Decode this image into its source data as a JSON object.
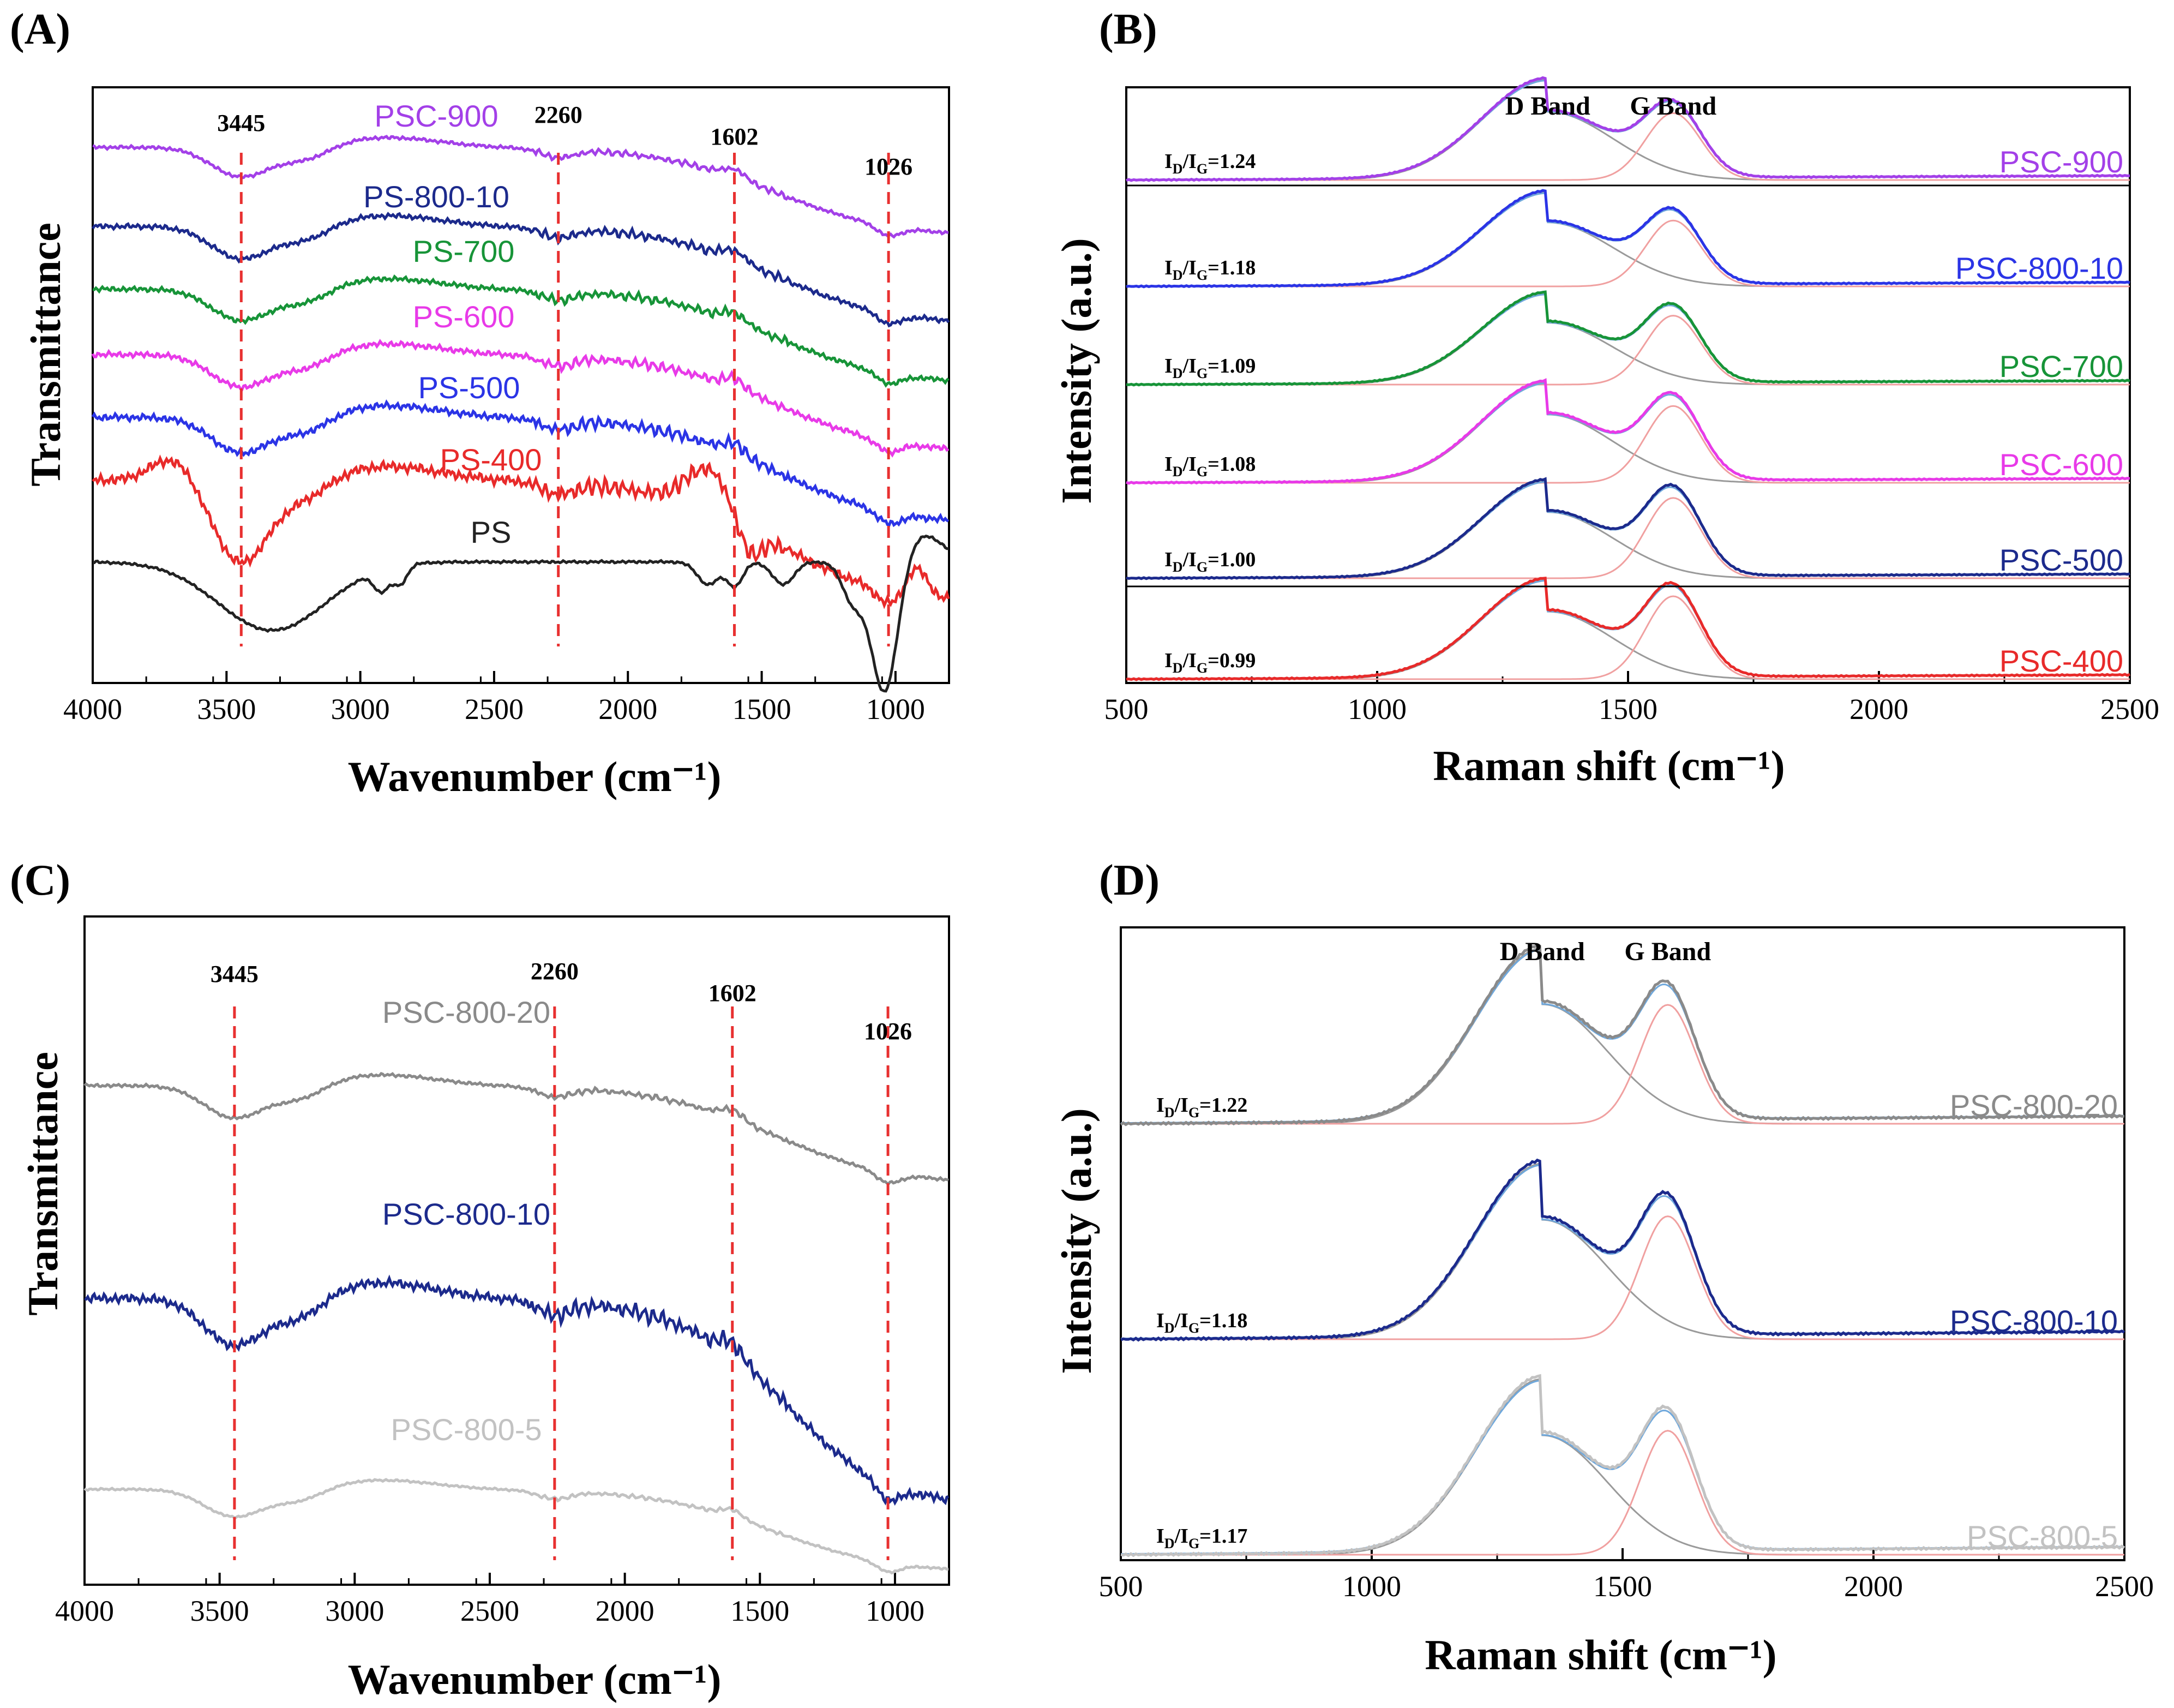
{
  "chart_data": [
    {
      "panel": "(A)",
      "type": "line",
      "xlabel": "Wavenumber (cm⁻¹)",
      "ylabel": "Transmittance",
      "xlim": [
        4000,
        800
      ],
      "xticks": [
        "4000",
        "3500",
        "3000",
        "2500",
        "2000",
        "1500",
        "1000"
      ],
      "peak_lines": [
        {
          "position": 3445,
          "label": "3445"
        },
        {
          "position": 2260,
          "label": "2260"
        },
        {
          "position": 1602,
          "label": "1602"
        },
        {
          "position": 1026,
          "label": "1026"
        }
      ],
      "series": [
        {
          "name": "PSC-900",
          "color": "#a340e8",
          "offset": 6
        },
        {
          "name": "PS-800-10",
          "color": "#1c2a8c",
          "offset": 5
        },
        {
          "name": "PS-700",
          "color": "#179438",
          "offset": 4
        },
        {
          "name": "PS-600",
          "color": "#e83ae8",
          "offset": 3
        },
        {
          "name": "PS-500",
          "color": "#2b34e6",
          "offset": 2
        },
        {
          "name": "PS-400",
          "color": "#e82a2a",
          "offset": 1
        },
        {
          "name": "PS",
          "color": "#222222",
          "offset": 0
        }
      ]
    },
    {
      "panel": "(B)",
      "type": "line",
      "xlabel": "Raman shift (cm⁻¹)",
      "ylabel": "Intensity (a.u.)",
      "xlim": [
        500,
        2500
      ],
      "xticks": [
        "500",
        "1000",
        "1500",
        "2000",
        "2500"
      ],
      "band_labels": [
        "D Band",
        "G Band"
      ],
      "series": [
        {
          "name": "PSC-900",
          "color": "#a340e8",
          "ratio_label": "=1.24",
          "ratio": 1.24
        },
        {
          "name": "PSC-800-10",
          "color": "#2b34e6",
          "ratio_label": "=1.18",
          "ratio": 1.18
        },
        {
          "name": "PSC-700",
          "color": "#179438",
          "ratio_label": "=1.09",
          "ratio": 1.09
        },
        {
          "name": "PSC-600",
          "color": "#e83ae8",
          "ratio_label": "=1.08",
          "ratio": 1.08
        },
        {
          "name": "PSC-500",
          "color": "#1c2a8c",
          "ratio_label": "=1.00",
          "ratio": 1.0
        },
        {
          "name": "PSC-400",
          "color": "#e82a2a",
          "ratio_label": "=0.99",
          "ratio": 0.99
        }
      ]
    },
    {
      "panel": "(C)",
      "type": "line",
      "xlabel": "Wavenumber (cm⁻¹)",
      "ylabel": "Transmittance",
      "xlim": [
        4000,
        800
      ],
      "xticks": [
        "4000",
        "3500",
        "3000",
        "2500",
        "2000",
        "1500",
        "1000"
      ],
      "peak_lines": [
        {
          "position": 3445,
          "label": "3445"
        },
        {
          "position": 2260,
          "label": "2260"
        },
        {
          "position": 1602,
          "label": "1602"
        },
        {
          "position": 1026,
          "label": "1026"
        }
      ],
      "series": [
        {
          "name": "PSC-800-20",
          "color": "#8a8a8a"
        },
        {
          "name": "PSC-800-10",
          "color": "#1c2a8c"
        },
        {
          "name": "PSC-800-5",
          "color": "#c2c2c2"
        }
      ]
    },
    {
      "panel": "(D)",
      "type": "line",
      "xlabel": "Raman shift (cm⁻¹)",
      "ylabel": "Intensity (a.u.)",
      "xlim": [
        500,
        2500
      ],
      "xticks": [
        "500",
        "1000",
        "1500",
        "2000",
        "2500"
      ],
      "band_labels": [
        "D Band",
        "G Band"
      ],
      "series": [
        {
          "name": "PSC-800-20",
          "color": "#8a8a8a",
          "ratio_label": "=1.22",
          "ratio": 1.22
        },
        {
          "name": "PSC-800-10",
          "color": "#1c2a8c",
          "ratio_label": "=1.18",
          "ratio": 1.18
        },
        {
          "name": "PSC-800-5",
          "color": "#c2c2c2",
          "ratio_label": "=1.17",
          "ratio": 1.17
        }
      ]
    }
  ],
  "colors": {
    "peak_line": "#e83030",
    "fit_d": "#9a9a9a",
    "fit_g": "#f0a0a0",
    "fit_envelope": "#6fa8dc"
  }
}
